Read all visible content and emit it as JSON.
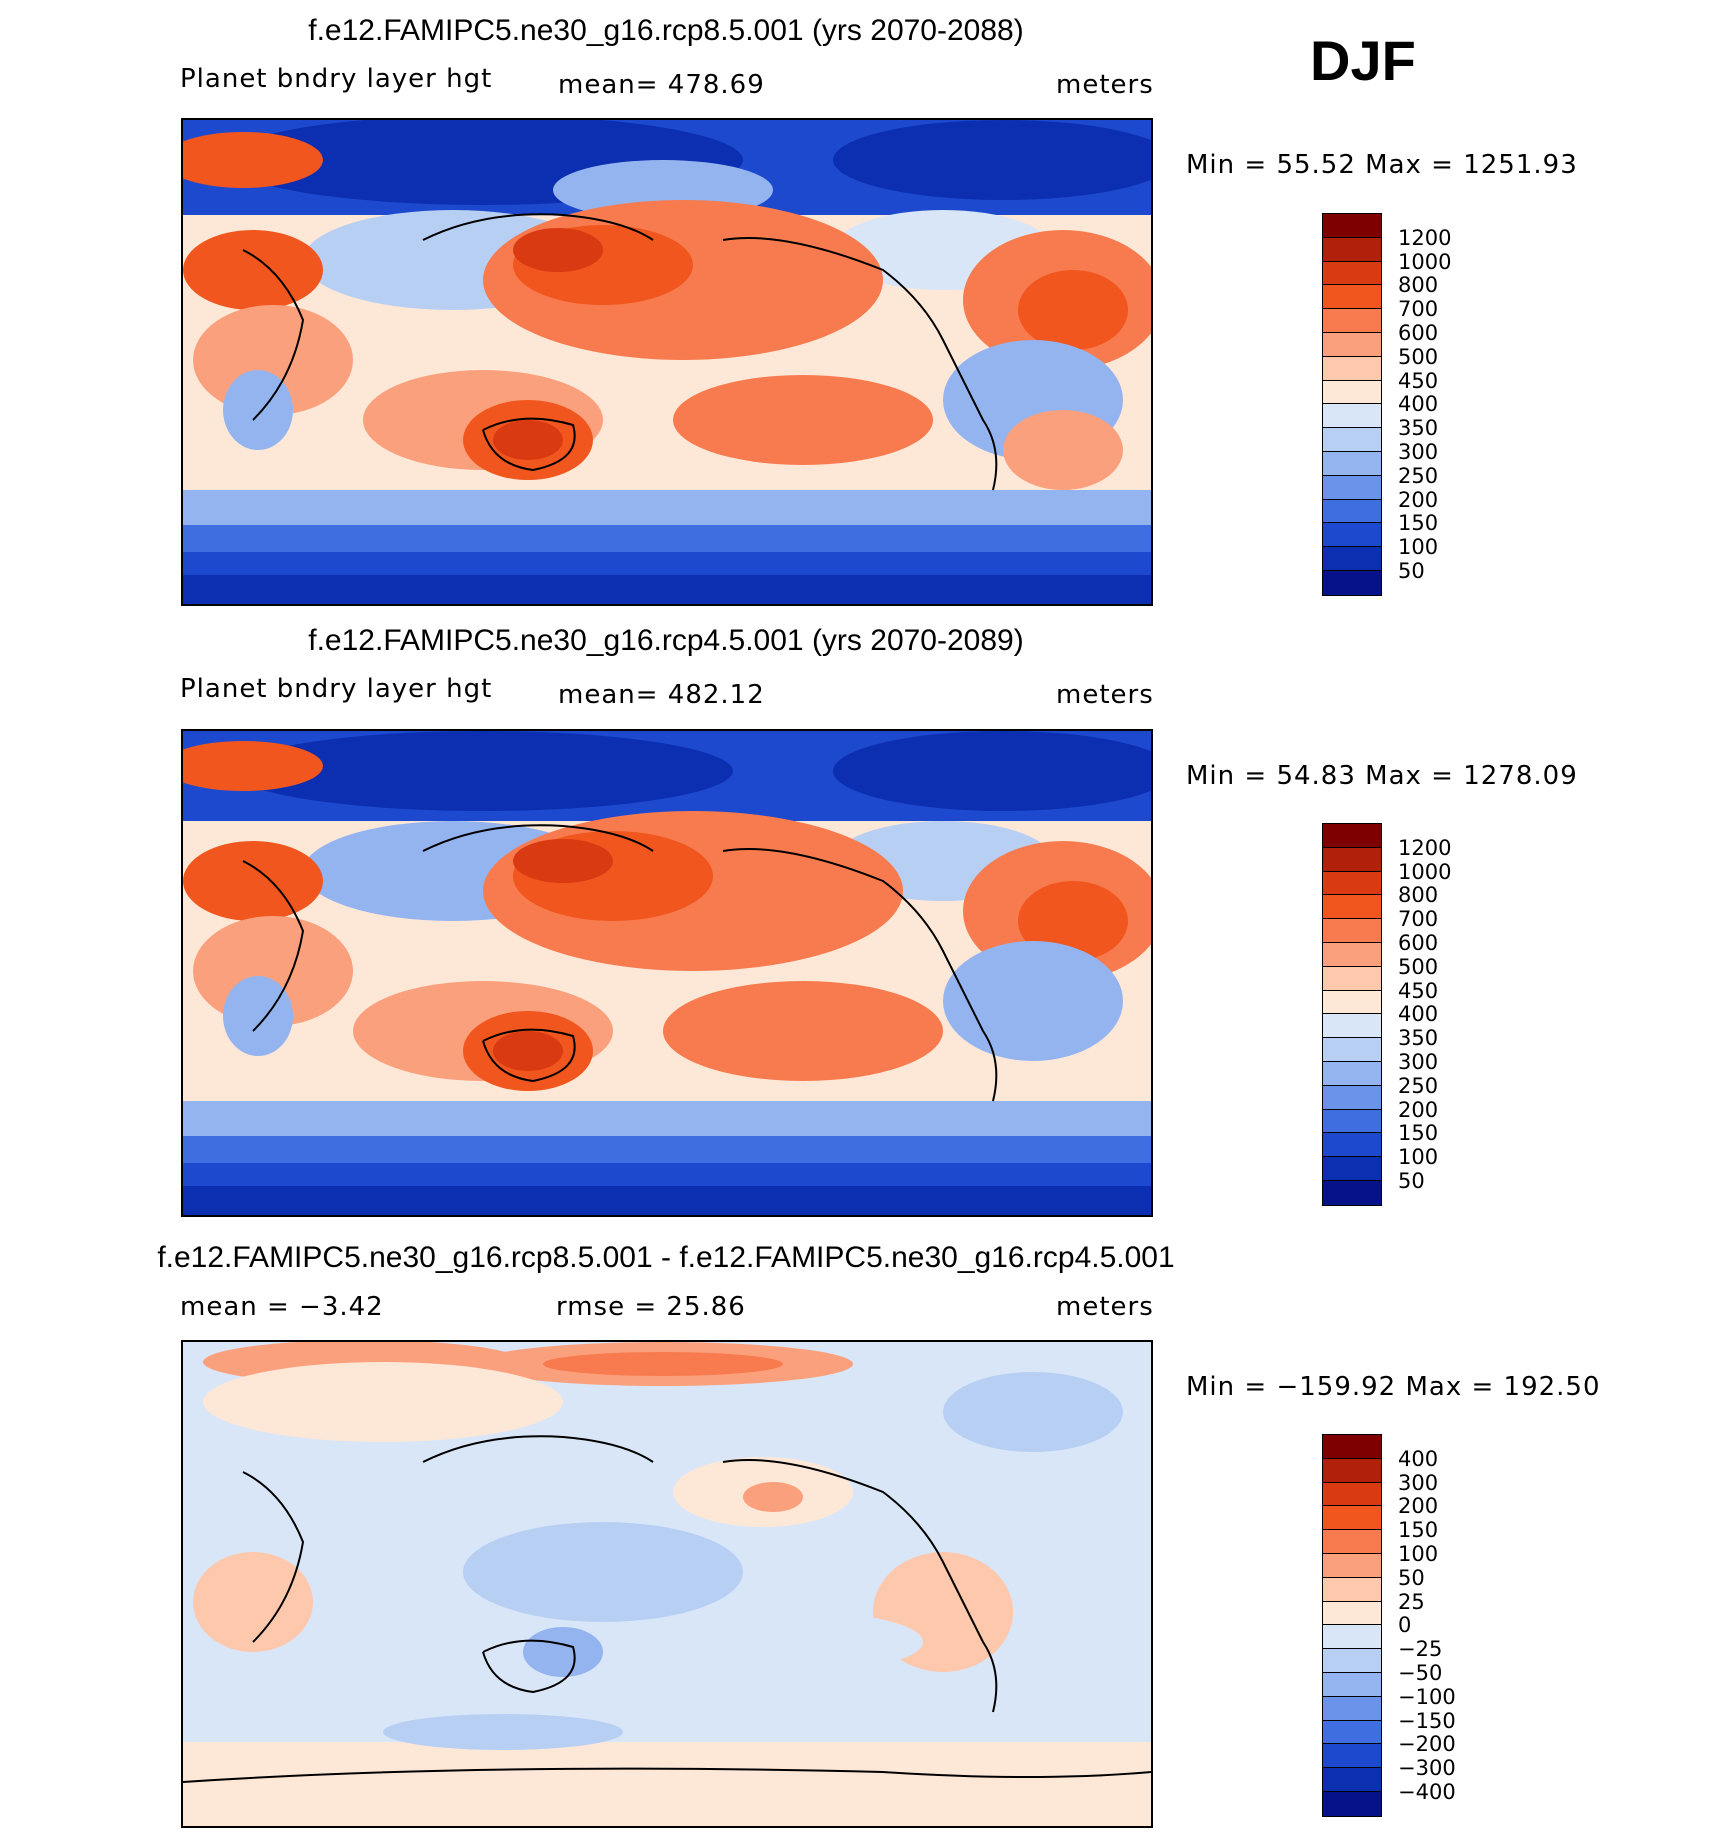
{
  "season": "DJF",
  "panels": [
    {
      "title": "f.e12.FAMIPC5.ne30_g16.rcp8.5.001 (yrs 2070-2088)",
      "left_label": "Planet bndry layer hgt",
      "center_label": "mean= 478.69",
      "right_label": "meters",
      "minmax": "Min =   55.52 Max = 1251.93",
      "levels": [
        "1200",
        "1000",
        "800",
        "700",
        "600",
        "500",
        "450",
        "400",
        "350",
        "300",
        "250",
        "200",
        "150",
        "100",
        "50"
      ]
    },
    {
      "title": "f.e12.FAMIPC5.ne30_g16.rcp4.5.001 (yrs 2070-2089)",
      "left_label": "Planet bndry layer hgt",
      "center_label": "mean= 482.12",
      "right_label": "meters",
      "minmax": "Min =   54.83 Max = 1278.09",
      "levels": [
        "1200",
        "1000",
        "800",
        "700",
        "600",
        "500",
        "450",
        "400",
        "350",
        "300",
        "250",
        "200",
        "150",
        "100",
        "50"
      ]
    },
    {
      "title": "f.e12.FAMIPC5.ne30_g16.rcp8.5.001 - f.e12.FAMIPC5.ne30_g16.rcp4.5.001",
      "left_label": "mean =   −3.42",
      "center_label": "rmse =   25.86",
      "right_label": "meters",
      "minmax": "Min = −159.92 Max = 192.50",
      "levels": [
        "400",
        "300",
        "200",
        "150",
        "100",
        "50",
        "25",
        "0",
        "−25",
        "−50",
        "−100",
        "−150",
        "−200",
        "−300",
        "−400"
      ]
    }
  ],
  "colors": {
    "abs_palette": [
      "#7f0000",
      "#b0200a",
      "#d93a12",
      "#f0561e",
      "#f77b4e",
      "#fba07c",
      "#fdc8ac",
      "#fde8d8",
      "#d8e6f8",
      "#b8cff4",
      "#94b4f0",
      "#6b93ea",
      "#3f6ee0",
      "#1d49cf",
      "#0b2fb0",
      "#05128a"
    ],
    "diff_palette": [
      "#7f0000",
      "#b0200a",
      "#d93a12",
      "#f0561e",
      "#f77b4e",
      "#fba07c",
      "#fdc8ac",
      "#fde8d8",
      "#d8e6f8",
      "#b8cff4",
      "#94b4f0",
      "#6b93ea",
      "#3f6ee0",
      "#1d49cf",
      "#0b2fb0",
      "#05128a"
    ]
  },
  "chart_data": [
    {
      "type": "heatmap",
      "title": "f.e12.FAMIPC5.ne30_g16.rcp8.5.001 (yrs 2070-2088)",
      "variable": "Planet bndry layer hgt",
      "units": "meters",
      "season": "DJF",
      "mean": 478.69,
      "min": 55.52,
      "max": 1251.93,
      "contour_levels": [
        50,
        100,
        150,
        200,
        250,
        300,
        350,
        400,
        450,
        500,
        600,
        700,
        800,
        1000,
        1200
      ]
    },
    {
      "type": "heatmap",
      "title": "f.e12.FAMIPC5.ne30_g16.rcp4.5.001 (yrs 2070-2089)",
      "variable": "Planet bndry layer hgt",
      "units": "meters",
      "season": "DJF",
      "mean": 482.12,
      "min": 54.83,
      "max": 1278.09,
      "contour_levels": [
        50,
        100,
        150,
        200,
        250,
        300,
        350,
        400,
        450,
        500,
        600,
        700,
        800,
        1000,
        1200
      ]
    },
    {
      "type": "heatmap",
      "title": "f.e12.FAMIPC5.ne30_g16.rcp8.5.001 - f.e12.FAMIPC5.ne30_g16.rcp4.5.001",
      "units": "meters",
      "season": "DJF",
      "mean": -3.42,
      "rmse": 25.86,
      "min": -159.92,
      "max": 192.5,
      "contour_levels": [
        -400,
        -300,
        -200,
        -150,
        -100,
        -50,
        -25,
        0,
        25,
        50,
        100,
        150,
        200,
        300,
        400
      ]
    }
  ]
}
